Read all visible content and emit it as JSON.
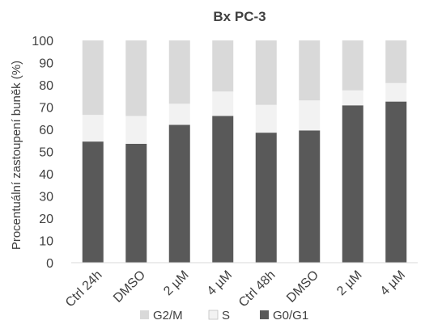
{
  "chart_data": {
    "type": "bar",
    "stacked": true,
    "title": "Bx PC-3",
    "xlabel": "",
    "ylabel": "Procentuální zastoupení buněk (%)",
    "ylim": [
      0,
      100
    ],
    "yticks": [
      0,
      10,
      20,
      30,
      40,
      50,
      60,
      70,
      80,
      90,
      100
    ],
    "categories": [
      "Ctrl 24h",
      "DMSO",
      "2 µM",
      "4 µM",
      "Ctrl 48h",
      "DMSO",
      "2 µM",
      "4 µM"
    ],
    "series": [
      {
        "name": "G0/G1",
        "color": "#595959",
        "values": [
          54.5,
          53.5,
          62,
          66,
          58.5,
          59.5,
          70.8,
          72.5
        ]
      },
      {
        "name": "S",
        "color": "#f2f2f2",
        "values": [
          12,
          12.5,
          9.5,
          11,
          12.5,
          13.5,
          6.7,
          8.3
        ]
      },
      {
        "name": "G2/M",
        "color": "#d9d9d9",
        "values": [
          33.5,
          34,
          28.5,
          23,
          29,
          27,
          22.5,
          19.2
        ]
      }
    ],
    "legend": {
      "position": "bottom",
      "order": [
        "G2/M",
        "S",
        "G0/G1"
      ]
    },
    "grid": false
  }
}
